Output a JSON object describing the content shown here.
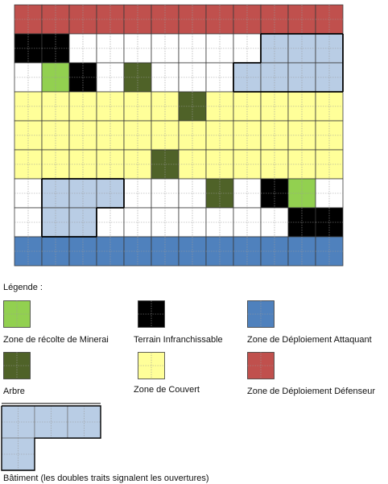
{
  "colors": {
    "defender": "#c0504d",
    "attacker": "#4f81bd",
    "mineral": "#92d050",
    "impassable": "#000000",
    "tree": "#4f6228",
    "cover": "#ffff99",
    "building": "#b9cde5",
    "empty": "#ffffff",
    "grid_line": "#9a9a9a"
  },
  "map": {
    "columns": 12,
    "rows": 9,
    "defender_row": 0,
    "attacker_row": 8,
    "cover_rows": [
      3,
      4,
      5
    ],
    "impassable": [
      [
        1,
        0
      ],
      [
        1,
        1
      ],
      [
        2,
        2
      ],
      [
        6,
        9
      ],
      [
        7,
        10
      ],
      [
        7,
        11
      ]
    ],
    "mineral": [
      [
        2,
        1
      ],
      [
        6,
        10
      ]
    ],
    "tree": [
      [
        2,
        4
      ],
      [
        3,
        6
      ],
      [
        5,
        5
      ],
      [
        6,
        7
      ]
    ],
    "buildings": [
      [
        [
          1,
          9
        ],
        [
          1,
          10
        ],
        [
          1,
          11
        ],
        [
          2,
          8
        ],
        [
          2,
          9
        ],
        [
          2,
          10
        ],
        [
          2,
          11
        ]
      ],
      [
        [
          6,
          1
        ],
        [
          6,
          2
        ],
        [
          6,
          3
        ],
        [
          7,
          1
        ],
        [
          7,
          2
        ]
      ]
    ]
  },
  "legend": {
    "title": "Légende :",
    "items": [
      {
        "key": "mineral",
        "label": "Zone de récolte de Minerai"
      },
      {
        "key": "impassable",
        "label": "Terrain Infranchissable"
      },
      {
        "key": "attacker",
        "label": "Zone de Déploiement Attaquant"
      },
      {
        "key": "tree",
        "label": "Arbre"
      },
      {
        "key": "cover",
        "label": "Zone de Couvert"
      },
      {
        "key": "defender",
        "label": "Zone de Déploiement Défenseur"
      }
    ],
    "building_label": "Bâtiment (les doubles traits signalent les ouvertures)"
  }
}
